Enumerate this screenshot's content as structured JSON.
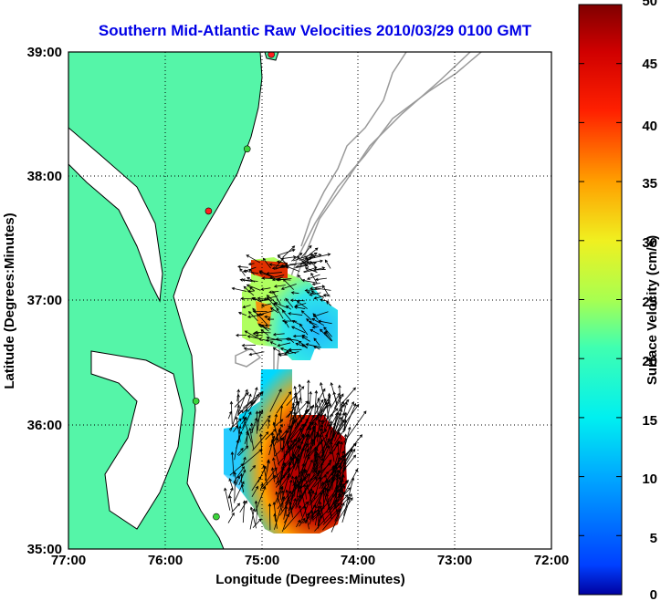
{
  "title": "Southern Mid-Atlantic Raw Velocities 2010/03/29 0100 GMT",
  "map": {
    "xlabel": "Longitude (Degrees:Minutes)",
    "ylabel": "Latitude (Degrees:Minutes)",
    "x_ticks": [
      "77:00",
      "76:00",
      "75:00",
      "74:00",
      "73:00",
      "72:00"
    ],
    "y_ticks": [
      "39:00",
      "38:00",
      "37:00",
      "36:00",
      "35:00"
    ],
    "lon_range": [
      -77,
      -72
    ],
    "lat_range": [
      35,
      39
    ],
    "grid": "dotted",
    "land_color": "#55f5a8",
    "contour_color": "#9a9a9a",
    "site_markers": [
      {
        "lon": -74.9,
        "lat": 38.98,
        "color": "#ff2020"
      },
      {
        "lon": -75.15,
        "lat": 38.22,
        "color": "#3bd43b"
      },
      {
        "lon": -75.55,
        "lat": 37.72,
        "color": "#ff2020"
      },
      {
        "lon": -75.68,
        "lat": 36.19,
        "color": "#3bd43b"
      },
      {
        "lon": -75.47,
        "lat": 35.26,
        "color": "#3bd43b"
      }
    ]
  },
  "colorbar": {
    "label": "Surface Velocity (cm/s)",
    "ticks": [
      "50",
      "45",
      "40",
      "35",
      "30",
      "25",
      "20",
      "15",
      "10",
      "5",
      "0"
    ],
    "min": 0,
    "max": 50,
    "colormap": "jet"
  }
}
